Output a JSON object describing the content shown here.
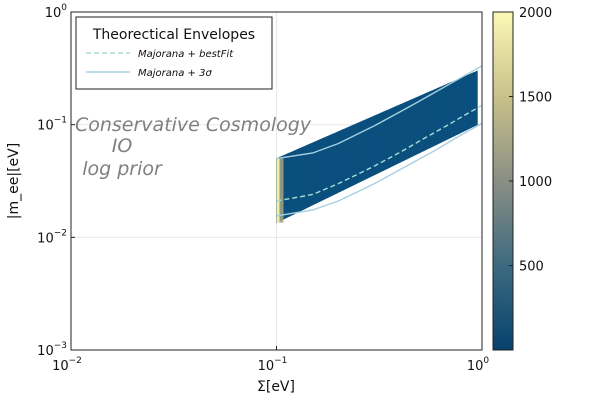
{
  "chart_data": {
    "type": "heatmap",
    "title": "",
    "xlabel": "Σ[eV]",
    "ylabel": "|m_ee|[eV]",
    "xscale": "log",
    "yscale": "log",
    "xlim": [
      0.01,
      1
    ],
    "ylim": [
      0.001,
      1
    ],
    "x_ticks": [
      {
        "base": "10",
        "exp": "−2",
        "value": 0.01
      },
      {
        "base": "10",
        "exp": "−1",
        "value": 0.1
      },
      {
        "base": "10",
        "exp": "0",
        "value": 1
      }
    ],
    "y_ticks": [
      {
        "base": "10",
        "exp": "−3",
        "value": 0.001
      },
      {
        "base": "10",
        "exp": "−2",
        "value": 0.01
      },
      {
        "base": "10",
        "exp": "−1",
        "value": 0.1
      },
      {
        "base": "10",
        "exp": "0",
        "value": 1
      }
    ],
    "grid": true,
    "annotations": [
      "Conservative Cosmology",
      "IO",
      "log prior"
    ],
    "legend": {
      "title": "Theorectical Envelopes",
      "position": "top-left",
      "entries": [
        {
          "label": "Majorana + bestFit",
          "style": "dashed",
          "color": "#a8dcd6"
        },
        {
          "label": "Majorana + 3σ",
          "style": "solid",
          "color": "#a6cfe0"
        }
      ]
    },
    "density": {
      "sigma_min": 0.1,
      "sigma_max": 0.95,
      "band_lower_at_min": 0.0135,
      "band_upper_at_min": 0.05,
      "band_lower_at_max": 0.1,
      "band_upper_at_max": 0.3,
      "peak_column_sigma": 0.1
    },
    "series": [
      {
        "name": "Majorana + bestFit",
        "style": "dashed",
        "color": "#a8dcd6",
        "x": [
          0.1,
          0.15,
          0.2,
          0.3,
          0.4,
          0.5,
          0.6,
          0.7,
          0.8,
          0.9,
          1.0
        ],
        "y": [
          0.021,
          0.024,
          0.03,
          0.043,
          0.057,
          0.072,
          0.087,
          0.102,
          0.118,
          0.133,
          0.148
        ]
      },
      {
        "name": "Majorana + 3σ (upper)",
        "style": "solid",
        "color": "#a6cfe0",
        "x": [
          0.1,
          0.15,
          0.2,
          0.3,
          0.4,
          0.5,
          0.6,
          0.7,
          0.8,
          0.9,
          1.0
        ],
        "y": [
          0.05,
          0.056,
          0.068,
          0.098,
          0.13,
          0.163,
          0.197,
          0.231,
          0.265,
          0.299,
          0.333
        ]
      },
      {
        "name": "Majorana + 3σ (lower)",
        "style": "solid",
        "color": "#a6cfe0",
        "x": [
          0.1,
          0.15,
          0.2,
          0.3,
          0.4,
          0.5,
          0.6,
          0.7,
          0.8,
          0.9,
          1.0
        ],
        "y": [
          0.0155,
          0.0175,
          0.021,
          0.03,
          0.04,
          0.05,
          0.06,
          0.071,
          0.082,
          0.092,
          0.103
        ]
      }
    ],
    "colorbar": {
      "min": 0,
      "max": 2000,
      "ticks": [
        500,
        1000,
        1500,
        2000
      ],
      "colors": [
        "#06426e",
        "#3d6a80",
        "#8a8f84",
        "#c9c18a",
        "#fcf9b6"
      ]
    }
  }
}
